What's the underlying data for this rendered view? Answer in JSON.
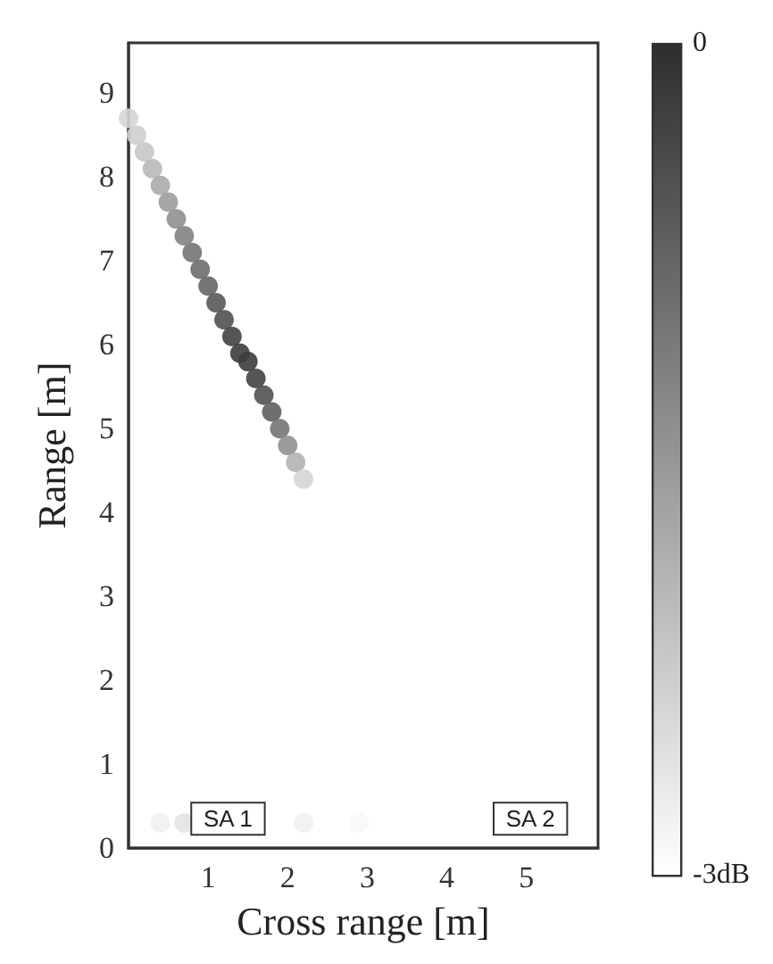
{
  "chart_data": {
    "type": "scatter",
    "xlabel": "Cross range [m]",
    "ylabel": "Range [m]",
    "xlim": [
      0,
      5.9
    ],
    "xticks": [
      1,
      2,
      3,
      4,
      5
    ],
    "ylim": [
      0,
      9.6
    ],
    "yticks": [
      0,
      1,
      2,
      3,
      4,
      5,
      6,
      7,
      8,
      9
    ],
    "grid": false,
    "marker": "circle",
    "x": [
      0,
      0.1,
      0.2,
      0.3,
      0.4,
      0.5,
      0.6,
      0.7,
      0.8,
      0.9,
      1.0,
      1.1,
      1.2,
      1.3,
      1.4,
      1.5,
      1.6,
      1.7,
      1.8,
      1.9,
      2.0,
      2.1,
      2.2,
      0.4,
      0.7,
      2.2,
      2.9
    ],
    "values": [
      8.7,
      8.5,
      8.3,
      8.1,
      7.9,
      7.7,
      7.5,
      7.3,
      7.1,
      6.9,
      6.7,
      6.5,
      6.3,
      6.1,
      5.9,
      5.8,
      5.6,
      5.4,
      5.2,
      5.0,
      4.8,
      4.6,
      4.4,
      0.3,
      0.3,
      0.3,
      0.3
    ],
    "cvalues": [
      -2.4,
      -2.3,
      -2.2,
      -2.0,
      -1.8,
      -1.6,
      -1.4,
      -1.2,
      -1.0,
      -0.9,
      -0.8,
      -0.6,
      -0.5,
      -0.3,
      -0.2,
      -0.2,
      -0.3,
      -0.5,
      -0.7,
      -1.0,
      -1.4,
      -1.9,
      -2.4,
      -2.8,
      -2.6,
      -2.8,
      -2.9
    ],
    "clim": [
      -3,
      0
    ],
    "cticks": [
      {
        "value": 0,
        "label": "0"
      },
      {
        "value": -3,
        "label": "-3dB"
      }
    ],
    "annotations": [
      {
        "text": "SA 1",
        "x": 1.25,
        "y": 0.35
      },
      {
        "text": "SA 2",
        "x": 5.05,
        "y": 0.35
      }
    ]
  }
}
